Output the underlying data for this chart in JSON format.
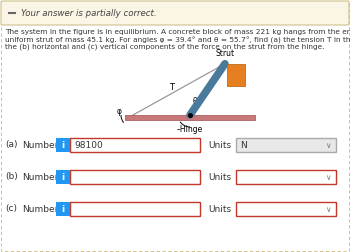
{
  "banner_text": "Your answer is partially correct.",
  "banner_bg": "#faf5e4",
  "banner_border": "#c8b87a",
  "banner_icon_color": "#555555",
  "body_text_line1": "The system in the figure is in equilibrium. A concrete block of mass 221 kg hangs from the end of the",
  "body_text_line2": "uniform strut of mass 45.1 kg. For angles φ = 39.4° and θ = 55.7°, find (a) the tension T in the cable and",
  "body_text_line3": "the (b) horizontal and (c) vertical components of the force on the strut from the hinge.",
  "row_a_label_prefix": "(a)",
  "row_b_label_prefix": "(b)",
  "row_c_label_prefix": "(c)",
  "label_suffix": "Number",
  "info_btn_color": "#2196F3",
  "info_btn_text": "i",
  "row_a_value": "98100",
  "row_a_units_text": "N",
  "row_a_units_bg": "#e8e8e8",
  "input_border_color_a": "#c0392b",
  "input_border_color_bc": "#c0392b",
  "units_border_color_a": "#aaaaaa",
  "units_border_color_bc": "#c0392b",
  "bg_color": "#ffffff",
  "text_color": "#333333",
  "diagram_strut_color": "#4a7a9b",
  "diagram_block_color": "#e67e22",
  "diagram_base_color": "#c87878",
  "diagram_cable_color": "#999999",
  "strut_label": "Strut",
  "hinge_label": "–Hinge",
  "cable_label": "T",
  "angle_phi": "φ",
  "angle_theta": "θ"
}
